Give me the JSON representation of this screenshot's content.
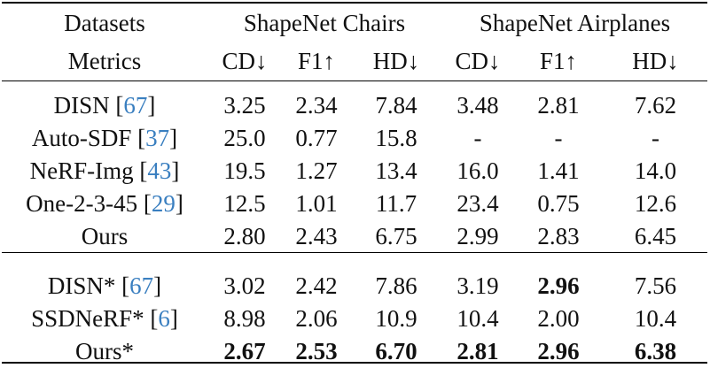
{
  "header": {
    "datasets_label": "Datasets",
    "metrics_label": "Metrics",
    "group1": "ShapeNet Chairs",
    "group2": "ShapeNet Airplanes",
    "metrics": [
      "CD↓",
      "F1↑",
      "HD↓",
      "CD↓",
      "F1↑",
      "HD↓"
    ]
  },
  "rows": [
    {
      "name": "DISN [",
      "ref": "67",
      "close": "]",
      "values": [
        "3.25",
        "2.34",
        "7.84",
        "3.48",
        "2.81",
        "7.62"
      ]
    },
    {
      "name": "Auto-SDF [",
      "ref": "37",
      "close": "]",
      "values": [
        "25.0",
        "0.77",
        "15.8",
        "-",
        "-",
        "-"
      ]
    },
    {
      "name": "NeRF-Img [",
      "ref": "43",
      "close": "]",
      "values": [
        "19.5",
        "1.27",
        "13.4",
        "16.0",
        "1.41",
        "14.0"
      ]
    },
    {
      "name": "One-2-3-45 [",
      "ref": "29",
      "close": "]",
      "values": [
        "12.5",
        "1.01",
        "11.7",
        "23.4",
        "0.75",
        "12.6"
      ]
    },
    {
      "name": "Ours",
      "ref": "",
      "close": "",
      "values": [
        "2.80",
        "2.43",
        "6.75",
        "2.99",
        "2.83",
        "6.45"
      ]
    },
    {
      "name": "DISN* [",
      "ref": "67",
      "close": "]",
      "values": [
        "3.02",
        "2.42",
        "7.86",
        "3.19",
        "2.96",
        "7.56"
      ]
    },
    {
      "name": "SSDNeRF* [",
      "ref": "6",
      "close": "]",
      "values": [
        "8.98",
        "2.06",
        "10.9",
        "10.4",
        "2.00",
        "10.4"
      ]
    },
    {
      "name": "Ours*",
      "ref": "",
      "close": "",
      "values": [
        "2.67",
        "2.53",
        "6.70",
        "2.81",
        "2.96",
        "6.38"
      ]
    }
  ],
  "bold_cells": [
    [
      5,
      4
    ],
    [
      7,
      0
    ],
    [
      7,
      1
    ],
    [
      7,
      2
    ],
    [
      7,
      3
    ],
    [
      7,
      4
    ],
    [
      7,
      5
    ]
  ]
}
